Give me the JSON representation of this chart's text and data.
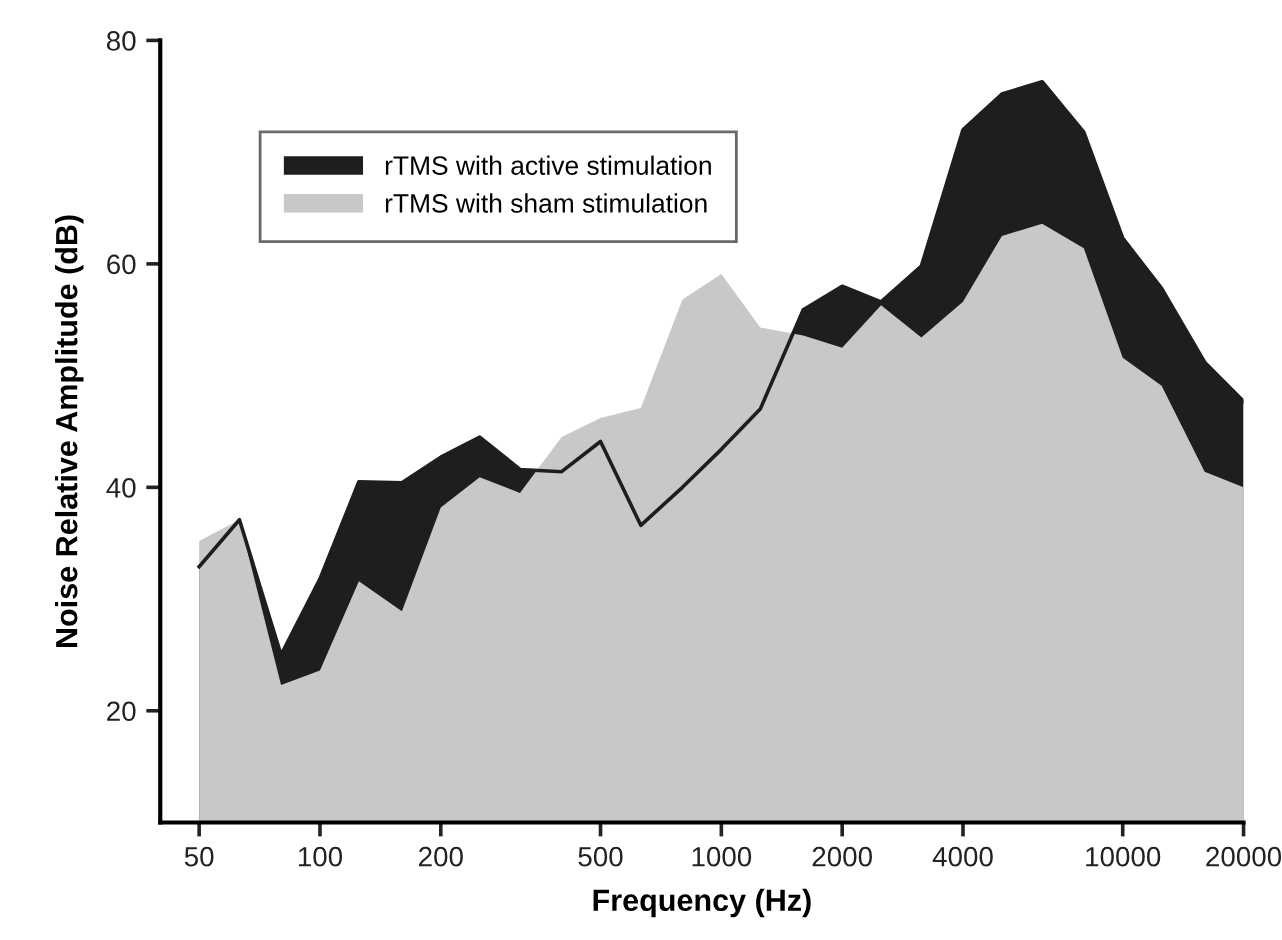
{
  "chart_data": {
    "type": "area",
    "xlabel": "Frequency (Hz)",
    "ylabel": "Noise Relative Amplitude (dB)",
    "x": [
      50,
      63,
      80,
      100,
      125,
      160,
      200,
      250,
      315,
      400,
      500,
      630,
      800,
      1000,
      1250,
      1600,
      2000,
      2500,
      3150,
      4000,
      5000,
      6300,
      8000,
      10000,
      12500,
      16000,
      20000
    ],
    "series": [
      {
        "name": "rTMS with active stimulation",
        "color": "#1e1e1e",
        "values": [
          32.9,
          37.1,
          25,
          31.8,
          40.5,
          40.4,
          42.7,
          44.5,
          41.6,
          41.4,
          44.1,
          36.6,
          40,
          43.4,
          47,
          55.9,
          58,
          56.6,
          59.8,
          72,
          75.2,
          76.3,
          71.8,
          62.3,
          57.8,
          51.2,
          47.7
        ]
      },
      {
        "name": "rTMS with sham stimulation",
        "color": "#c8c8c8",
        "values": [
          35.2,
          37.1,
          22.3,
          23.6,
          31.6,
          28.9,
          38.2,
          40.9,
          39.5,
          44.5,
          46.2,
          47.1,
          56.8,
          59.1,
          54.3,
          53.6,
          52.5,
          56.3,
          53.4,
          56.6,
          62.5,
          63.6,
          61.4,
          51.6,
          49.1,
          41.4,
          40
        ]
      }
    ],
    "log": "x",
    "xlim": [
      40,
      20000
    ],
    "xticks": [
      50,
      100,
      200,
      500,
      1000,
      2000,
      4000,
      10000,
      20000
    ],
    "ylim": [
      10,
      80
    ],
    "yticks": [
      20,
      40,
      60,
      80
    ],
    "grid": false,
    "legend": "top left"
  }
}
